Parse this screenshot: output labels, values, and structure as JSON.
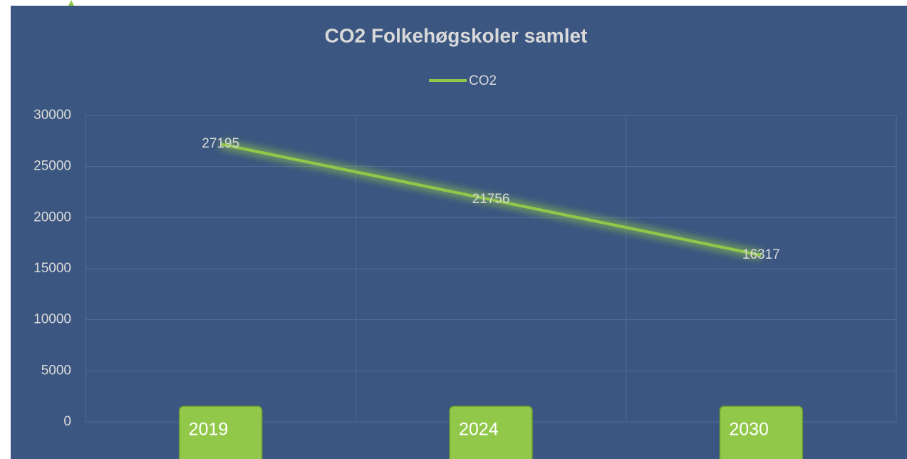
{
  "chart_data": {
    "type": "line",
    "title": "CO2 Folkehøgskoler samlet",
    "categories": [
      "2019",
      "2024",
      "2030"
    ],
    "series": [
      {
        "name": "CO2",
        "color": "#92c84a",
        "values": [
          27195,
          21756,
          16317
        ]
      }
    ],
    "ylim": [
      0,
      30000
    ],
    "yticks": [
      0,
      5000,
      10000,
      15000,
      20000,
      25000,
      30000
    ],
    "grid": true,
    "legend": "top"
  }
}
